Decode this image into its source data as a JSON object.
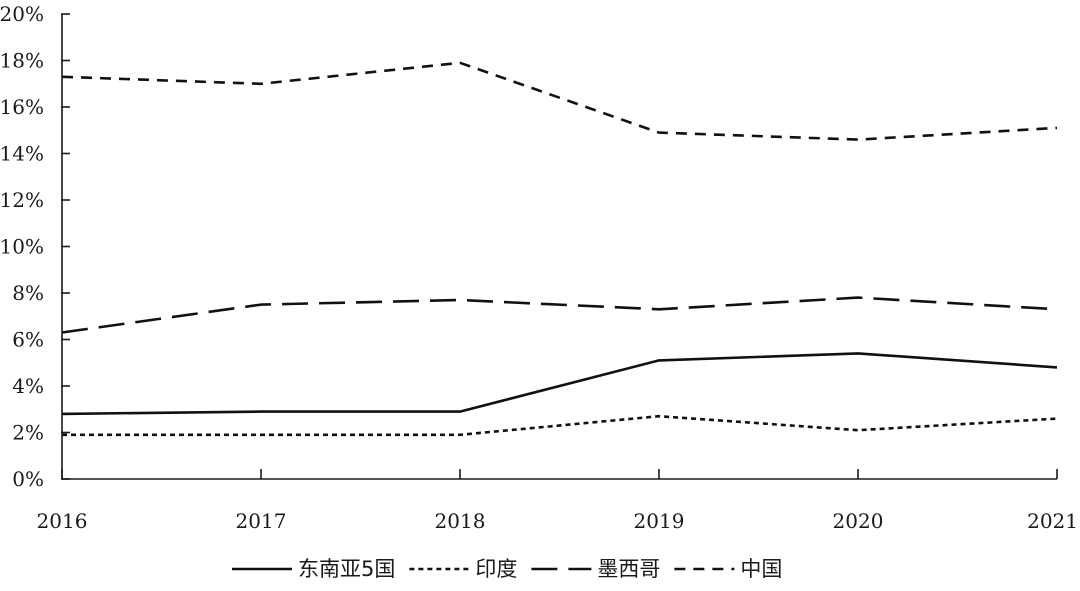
{
  "chart_data": {
    "type": "line",
    "title": "",
    "xlabel": "",
    "ylabel": "",
    "x": [
      "2016",
      "2017",
      "2018",
      "2019",
      "2020",
      "2021"
    ],
    "ylim": [
      0,
      20
    ],
    "yticks": [
      "0%",
      "2%",
      "4%",
      "6%",
      "8%",
      "10%",
      "12%",
      "14%",
      "16%",
      "18%",
      "20%"
    ],
    "grid": false,
    "legend_position": "bottom",
    "series": [
      {
        "name": "东南亚5国",
        "style": "solid",
        "values": [
          2.8,
          2.9,
          2.9,
          5.1,
          5.4,
          4.8
        ]
      },
      {
        "name": "印度",
        "style": "dotted",
        "values": [
          1.9,
          1.9,
          1.9,
          2.7,
          2.1,
          2.6
        ]
      },
      {
        "name": "墨西哥",
        "style": "long-dash",
        "values": [
          6.3,
          7.5,
          7.7,
          7.3,
          7.8,
          7.3
        ]
      },
      {
        "name": "中国",
        "style": "dashed",
        "values": [
          17.3,
          17.0,
          17.9,
          14.9,
          14.6,
          15.1
        ]
      }
    ]
  }
}
